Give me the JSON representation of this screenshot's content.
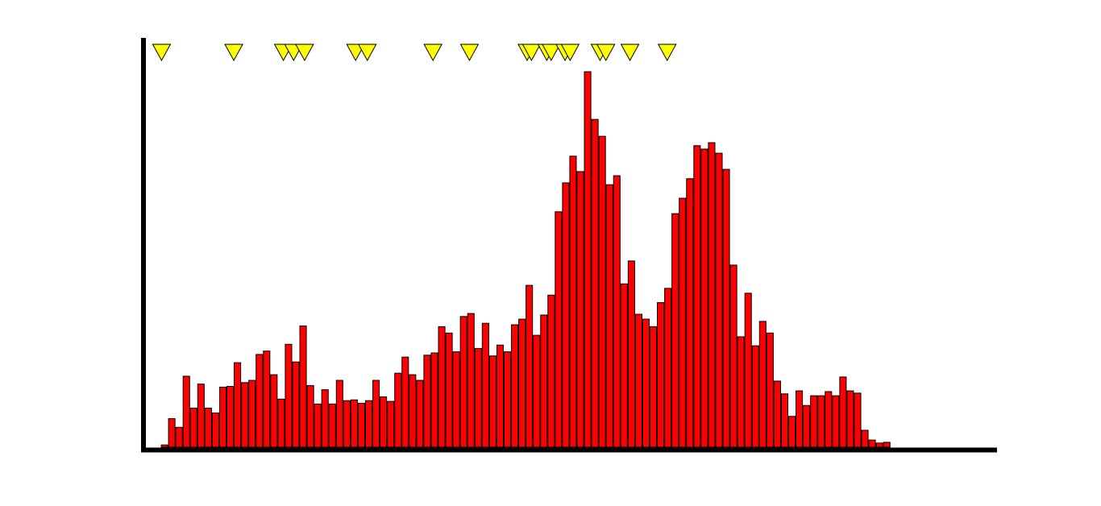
{
  "chart_data": {
    "type": "bar",
    "bar_color": "#ff0000",
    "bar_edge_color": "#000000",
    "axis_color": "#000000",
    "marker_color": "#ffff00",
    "marker_edge_color": "#000000",
    "grid": false,
    "title": "",
    "xlabel": "",
    "ylabel": "",
    "xlim": [
      0,
      116
    ],
    "ylim": [
      0,
      100
    ],
    "values": [
      0.6,
      7.6,
      5.3,
      18.9,
      10.4,
      16.8,
      10.4,
      9.1,
      16.0,
      16.2,
      22.5,
      17.2,
      17.8,
      24.7,
      25.6,
      19.3,
      12.8,
      27.4,
      22.7,
      32.3,
      16.4,
      11.5,
      15.3,
      11.5,
      17.8,
      12.4,
      12.6,
      11.7,
      12.4,
      17.8,
      13.4,
      12.2,
      19.7,
      24.0,
      19.3,
      17.8,
      24.5,
      25.1,
      32.1,
      30.4,
      25.4,
      34.8,
      35.6,
      26.3,
      33.0,
      24.3,
      27.2,
      25.4,
      32.6,
      34.1,
      43.1,
      29.8,
      35.2,
      40.5,
      62.7,
      70.4,
      77.5,
      73.4,
      100.0,
      87.3,
      82.8,
      69.9,
      72.3,
      43.5,
      49.6,
      35.4,
      34.1,
      32.1,
      38.5,
      42.3,
      62.2,
      66.3,
      71.5,
      80.3,
      79.4,
      81.1,
      78.3,
      74.0,
      48.5,
      29.4,
      41.0,
      27.0,
      33.5,
      30.4,
      17.6,
      14.2,
      8.2,
      15.0,
      11.1,
      13.7,
      13.7,
      14.8,
      13.7,
      18.7,
      15.0,
      14.4,
      4.5,
      1.9,
      1.1,
      1.3
    ],
    "markers_x": [
      1.1,
      11.0,
      17.8,
      19.2,
      20.7,
      27.7,
      29.3,
      38.3,
      43.3,
      51.2,
      51.8,
      53.9,
      54.5,
      56.4,
      57.1,
      61.2,
      62.0,
      65.3,
      70.4
    ]
  }
}
